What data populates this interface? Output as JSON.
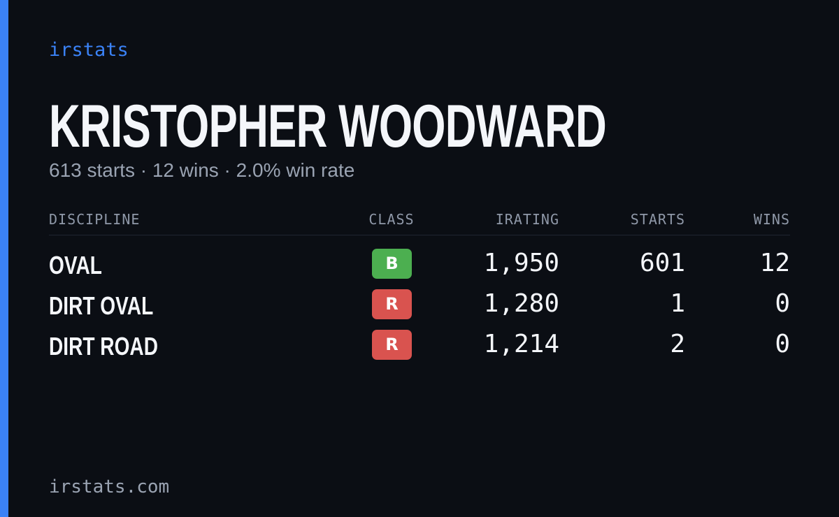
{
  "brand": "irstats",
  "driver": {
    "name": "KRISTOPHER WOODWARD",
    "summary": "613 starts · 12 wins · 2.0% win rate"
  },
  "table": {
    "headers": [
      "DISCIPLINE",
      "CLASS",
      "IRATING",
      "STARTS",
      "WINS"
    ],
    "rows": [
      {
        "discipline": "OVAL",
        "class": "B",
        "class_color": "#4caf50",
        "irating": "1,950",
        "starts": 601,
        "wins": 12
      },
      {
        "discipline": "DIRT OVAL",
        "class": "R",
        "class_color": "#d9534f",
        "irating": "1,280",
        "starts": 1,
        "wins": 0
      },
      {
        "discipline": "DIRT ROAD",
        "class": "R",
        "class_color": "#d9534f",
        "irating": "1,214",
        "starts": 2,
        "wins": 0
      }
    ]
  },
  "footer": "irstats.com"
}
